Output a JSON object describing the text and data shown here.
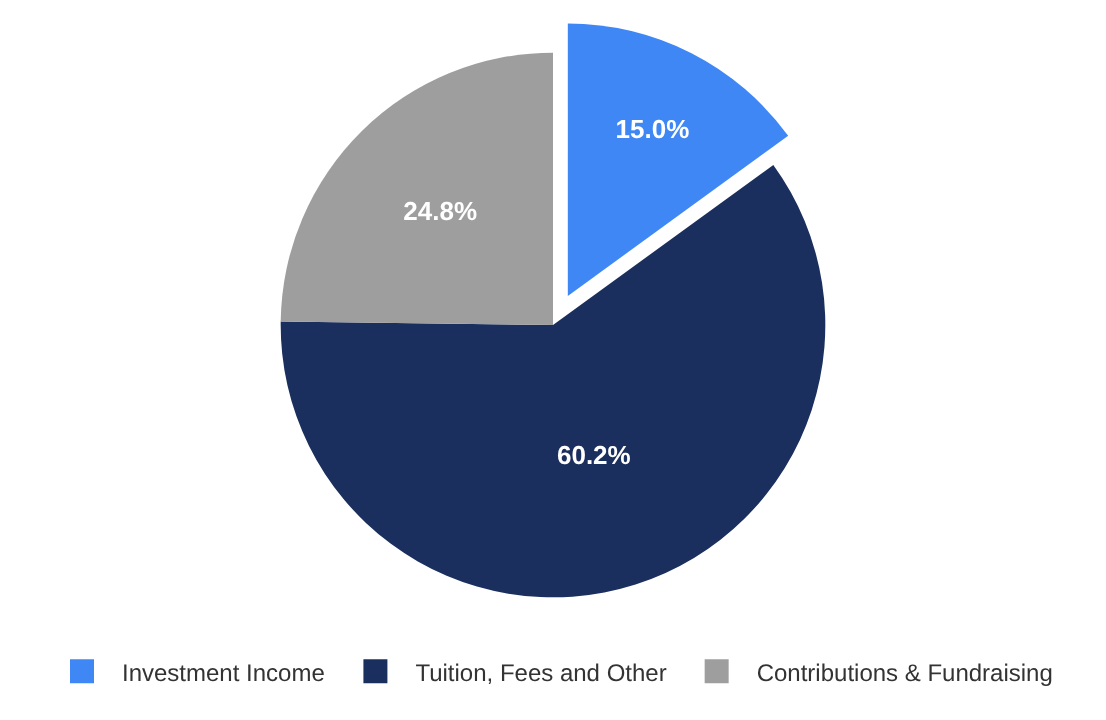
{
  "chart_data": {
    "type": "pie",
    "categories": [
      "Investment Income",
      "Tuition, Fees and Other",
      "Contributions & Fundraising"
    ],
    "values": [
      15.0,
      60.2,
      24.8
    ],
    "colors": [
      "#3f87f5",
      "#1b2f5e",
      "#9e9e9e"
    ],
    "value_labels": [
      "15.0%",
      "60.2%",
      "24.8%"
    ],
    "legend": "bottom"
  }
}
